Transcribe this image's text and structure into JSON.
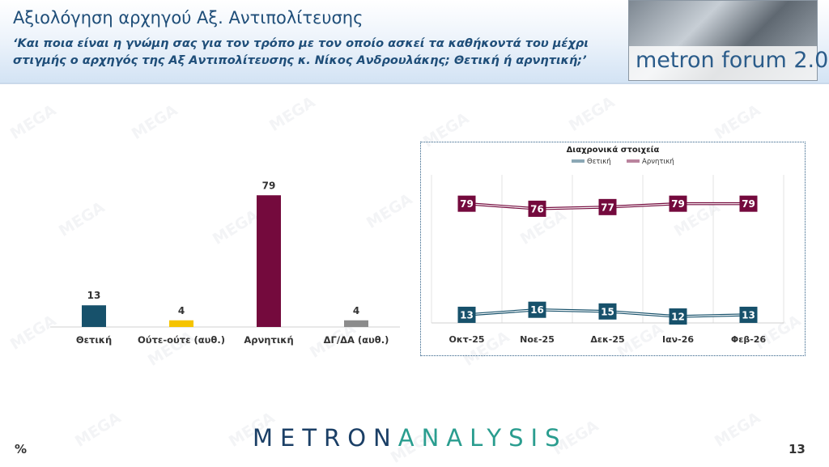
{
  "header": {
    "title": "Αξιολόγηση αρχηγού Αξ. Αντιπολίτευσης",
    "question": "‘Και ποια είναι η γνώμη σας για τον τρόπο με τον οποίο ασκεί τα καθήκοντά του μέχρι στιγμής ο αρχηγός της Αξ Αντιπολίτευσης κ. Νίκος Ανδρουλάκης; Θετική ή αρνητική;’"
  },
  "logo": {
    "text": "metron forum 2.0"
  },
  "watermark": "MEGA",
  "chart_data": [
    {
      "type": "bar",
      "categories": [
        "Θετική",
        "Ούτε-ούτε (αυθ.)",
        "Αρνητική",
        "ΔΓ/ΔΑ (αυθ.)"
      ],
      "values": [
        13,
        4,
        79,
        4
      ],
      "colors": [
        "#17516b",
        "#f5c400",
        "#740a3d",
        "#8c8c8c"
      ],
      "ylim": [
        0,
        100
      ],
      "grid": false
    },
    {
      "type": "line",
      "title": "Διαχρονικά στοιχεία",
      "categories": [
        "Οκτ-25",
        "Νοε-25",
        "Δεκ-25",
        "Ιαν-26",
        "Φεβ-26"
      ],
      "series": [
        {
          "name": "Θετική",
          "color": "#17516b",
          "values": [
            13,
            16,
            15,
            12,
            13
          ]
        },
        {
          "name": "Αρνητική",
          "color": "#740a3d",
          "values": [
            79,
            76,
            77,
            79,
            79
          ]
        }
      ],
      "ylim": [
        0,
        100
      ],
      "legend": "top-center",
      "grid": "vertical"
    }
  ],
  "footer": {
    "brand_part1": "METRON",
    "brand_part2": "ANALYSIS",
    "unit": "%",
    "page": "13"
  }
}
